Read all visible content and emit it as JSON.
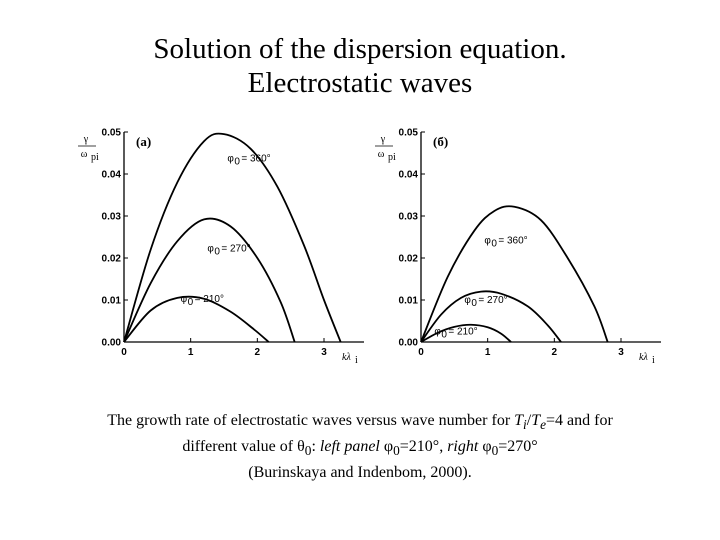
{
  "title": {
    "line1": "Solution of the dispersion equation.",
    "line2": "Electrostatic waves"
  },
  "caption": {
    "seg1": "The growth rate of electrostatic waves versus wave number for ",
    "Ti": "T",
    "Ti_sub": "i",
    "slash": "/",
    "Te": "T",
    "Te_sub": "e",
    "seg2": "=4 and for",
    "seg3": "different value of θ",
    "theta_sub": "0",
    "seg4": ": ",
    "left_panel": "left panel",
    "seg5": " φ",
    "phi_sub1": "0",
    "seg6": "=210°, ",
    "right": "right",
    "seg7": " φ",
    "phi_sub2": "0",
    "seg8": "=270°",
    "line3": "(Burinskaya and Indenbom, 2000)."
  },
  "chart_data": [
    {
      "type": "line",
      "panel_label": "(a)",
      "ylabel_top": "γ",
      "ylabel_bottom": "ω",
      "ylabel_sub": "pi",
      "xlabel": "kλ",
      "xlabel_sub": "i",
      "xlim": [
        0,
        3.6
      ],
      "ylim": [
        0,
        0.05
      ],
      "xticks": [
        "0",
        "1",
        "2",
        "3"
      ],
      "yticks": [
        "0.00",
        "0.01",
        "0.02",
        "0.03",
        "0.04",
        "0.05"
      ],
      "series": [
        {
          "name": "φ0 = 210°",
          "label_main": "φ",
          "label_sub": "0",
          "label_value": "= 210°",
          "label_at": [
            0.85,
            0.0095
          ],
          "points": [
            [
              0,
              0
            ],
            [
              0.4,
              0.0075
            ],
            [
              0.8,
              0.0105
            ],
            [
              1.2,
              0.0103
            ],
            [
              1.6,
              0.0072
            ],
            [
              1.95,
              0.003
            ],
            [
              2.17,
              0
            ]
          ]
        },
        {
          "name": "φ0 = 270°",
          "label_main": "φ",
          "label_sub": "0",
          "label_value": "= 270°",
          "label_at": [
            1.25,
            0.0215
          ],
          "points": [
            [
              0,
              0
            ],
            [
              0.4,
              0.014
            ],
            [
              0.8,
              0.024
            ],
            [
              1.2,
              0.0292
            ],
            [
              1.6,
              0.0275
            ],
            [
              2.0,
              0.02
            ],
            [
              2.35,
              0.0095
            ],
            [
              2.56,
              0
            ]
          ]
        },
        {
          "name": "φ0 = 360°",
          "label_main": "φ",
          "label_sub": "0",
          "label_value": "= 360°",
          "label_at": [
            1.55,
            0.043
          ],
          "points": [
            [
              0,
              0
            ],
            [
              0.4,
              0.022
            ],
            [
              0.8,
              0.038
            ],
            [
              1.2,
              0.0478
            ],
            [
              1.5,
              0.0495
            ],
            [
              1.9,
              0.046
            ],
            [
              2.3,
              0.037
            ],
            [
              2.7,
              0.023
            ],
            [
              3.0,
              0.01
            ],
            [
              3.25,
              0
            ]
          ]
        }
      ]
    },
    {
      "type": "line",
      "panel_label": "(б)",
      "ylabel_top": "γ",
      "ylabel_bottom": "ω",
      "ylabel_sub": "pi",
      "xlabel": "kλ",
      "xlabel_sub": "i",
      "xlim": [
        0,
        3.6
      ],
      "ylim": [
        0,
        0.05
      ],
      "xticks": [
        "0",
        "1",
        "2",
        "3"
      ],
      "yticks": [
        "0.00",
        "0.01",
        "0.02",
        "0.03",
        "0.04",
        "0.05"
      ],
      "series": [
        {
          "name": "φ0 = 210°",
          "label_main": "φ",
          "label_sub": "0",
          "label_value": "= 210°",
          "label_at": [
            0.2,
            0.0018
          ],
          "points": [
            [
              0,
              0
            ],
            [
              0.25,
              0.0022
            ],
            [
              0.5,
              0.0036
            ],
            [
              0.75,
              0.0041
            ],
            [
              1.0,
              0.0035
            ],
            [
              1.2,
              0.002
            ],
            [
              1.35,
              0
            ]
          ]
        },
        {
          "name": "φ0 = 270°",
          "label_main": "φ",
          "label_sub": "0",
          "label_value": "= 270°",
          "label_at": [
            0.65,
            0.0093
          ],
          "points": [
            [
              0,
              0
            ],
            [
              0.3,
              0.0065
            ],
            [
              0.6,
              0.0105
            ],
            [
              0.9,
              0.012
            ],
            [
              1.2,
              0.0115
            ],
            [
              1.6,
              0.0085
            ],
            [
              1.9,
              0.004
            ],
            [
              2.1,
              0
            ]
          ]
        },
        {
          "name": "φ0 = 360°",
          "label_main": "φ",
          "label_sub": "0",
          "label_value": "= 360°",
          "label_at": [
            0.95,
            0.0235
          ],
          "points": [
            [
              0,
              0
            ],
            [
              0.4,
              0.0155
            ],
            [
              0.8,
              0.0265
            ],
            [
              1.1,
              0.0312
            ],
            [
              1.4,
              0.0322
            ],
            [
              1.8,
              0.029
            ],
            [
              2.2,
              0.02
            ],
            [
              2.6,
              0.0085
            ],
            [
              2.8,
              0
            ]
          ]
        }
      ]
    }
  ]
}
